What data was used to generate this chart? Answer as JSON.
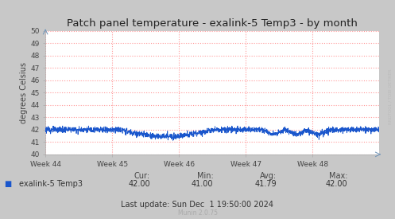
{
  "title": "Patch panel temperature - exalink-5 Temp3 - by month",
  "ylabel": "degrees Celsius",
  "ylim": [
    40,
    50
  ],
  "yticks": [
    40,
    41,
    42,
    43,
    44,
    45,
    46,
    47,
    48,
    49,
    50
  ],
  "xtick_labels": [
    "Week 44",
    "Week 45",
    "Week 46",
    "Week 47",
    "Week 48"
  ],
  "line_color": "#1a56cc",
  "bg_color": "#c8c8c8",
  "plot_bg_color": "#ffffff",
  "grid_color": "#ff9999",
  "minor_grid_color": "#e0e0e0",
  "legend_label": "exalink-5 Temp3",
  "legend_color": "#1a56cc",
  "cur_val": "42.00",
  "min_val": "41.00",
  "avg_val": "41.79",
  "max_val": "42.00",
  "last_update": "Last update: Sun Dec  1 19:50:00 2024",
  "munin_ver": "Munin 2.0.75",
  "watermark": "RRDTOOL / TOBI OETIKER",
  "title_fontsize": 9.5,
  "axis_label_fontsize": 7,
  "tick_fontsize": 6.5,
  "legend_fontsize": 7,
  "stats_fontsize": 7
}
